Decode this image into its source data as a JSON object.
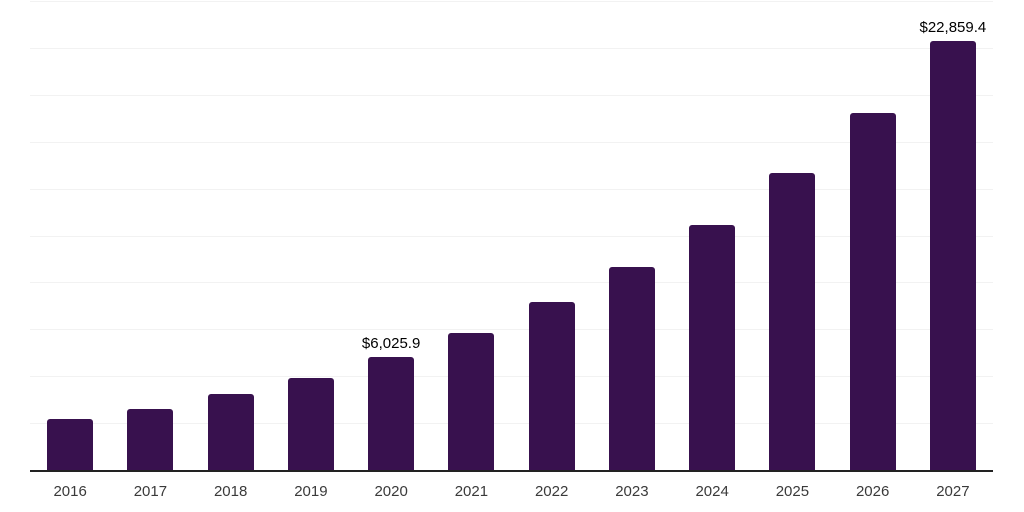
{
  "chart_data": {
    "type": "bar",
    "title": "",
    "xlabel": "",
    "ylabel": "",
    "categories": [
      "2016",
      "2017",
      "2018",
      "2019",
      "2020",
      "2021",
      "2022",
      "2023",
      "2024",
      "2025",
      "2026",
      "2027"
    ],
    "values": [
      2730,
      3270,
      4070,
      4930,
      6025.9,
      7300,
      8950,
      10800,
      13050,
      15850,
      19050,
      22859.4
    ],
    "data_labels": [
      "",
      "",
      "",
      "",
      "$6,025.9",
      "",
      "",
      "",
      "",
      "",
      "",
      "$22,859.4"
    ],
    "ylim": [
      0,
      25000
    ],
    "grid_step": 2500,
    "grid": "horizontal",
    "legend": "none"
  },
  "colors": {
    "background": "#ffffff",
    "bar": "#38114E",
    "gridline": "#f2f2f2",
    "axis_line": "#222222",
    "tick_label": "#3a3a3a",
    "data_label": "#000000"
  }
}
